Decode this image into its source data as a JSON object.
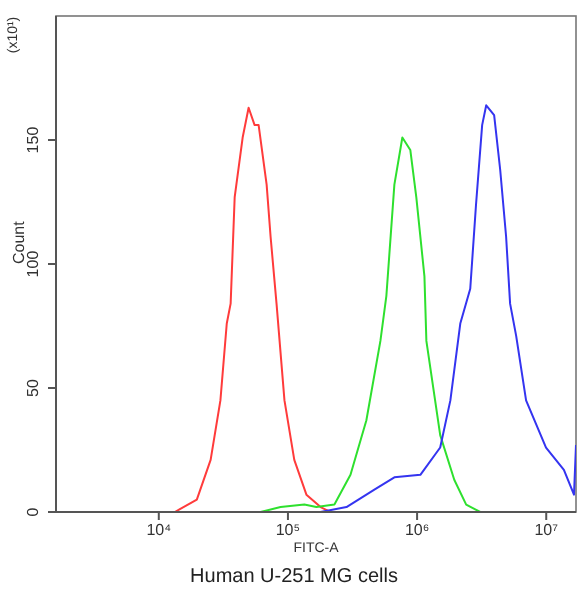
{
  "chart_data": {
    "type": "line",
    "title": "Human U-251 MG cells",
    "xlabel": "FITC-A",
    "ylabel": "Count",
    "annotations": [
      "(x10¹)"
    ],
    "log": "x",
    "marker": "none",
    "xlim": [
      1600,
      17000000
    ],
    "xticks": [
      {
        "value": 10000,
        "label": "10⁴"
      },
      {
        "value": 100000,
        "label": "10⁵"
      },
      {
        "value": 1000000,
        "label": "10⁶"
      },
      {
        "value": 10000000,
        "label": "10⁷"
      }
    ],
    "ylim": [
      0,
      200
    ],
    "yticks": [
      0,
      50,
      100,
      150
    ],
    "series": [
      {
        "color": "#ff3b3b",
        "x": [
          13300,
          19700,
          25200,
          30000,
          33600,
          36000,
          38700,
          44600,
          49600,
          55200,
          59300,
          68400,
          73400,
          81600,
          94000,
          112000,
          139000,
          179000,
          213000
        ],
        "values": [
          0,
          5,
          21,
          45,
          76,
          84,
          127,
          151,
          163,
          156,
          156,
          132,
          111,
          84,
          45,
          21,
          7,
          2,
          0
        ]
      },
      {
        "color": "#2ee02e",
        "x": [
          61400,
          87700,
          134000,
          166000,
          229000,
          305000,
          405000,
          520000,
          578000,
          667000,
          769000,
          886000,
          986000,
          1140000,
          1180000,
          1510000,
          1940000,
          2400000,
          3080000
        ],
        "values": [
          0,
          2,
          3,
          2,
          3,
          15,
          37,
          69,
          87,
          132,
          151,
          146,
          127,
          95,
          69,
          31,
          13,
          3,
          0
        ]
      },
      {
        "color": "#3434f0",
        "x": [
          179000,
          284000,
          467000,
          667000,
          1060000,
          1510000,
          1810000,
          2160000,
          2580000,
          2860000,
          3190000,
          3430000,
          3950000,
          4400000,
          4890000,
          5250000,
          5850000,
          6980000,
          9960000,
          13700000,
          16400000,
          17000000
        ],
        "values": [
          0,
          2,
          9,
          14,
          15,
          26,
          45,
          76,
          90,
          124,
          156,
          164,
          160,
          138,
          111,
          84,
          71,
          45,
          26,
          17,
          7,
          27
        ]
      }
    ]
  }
}
